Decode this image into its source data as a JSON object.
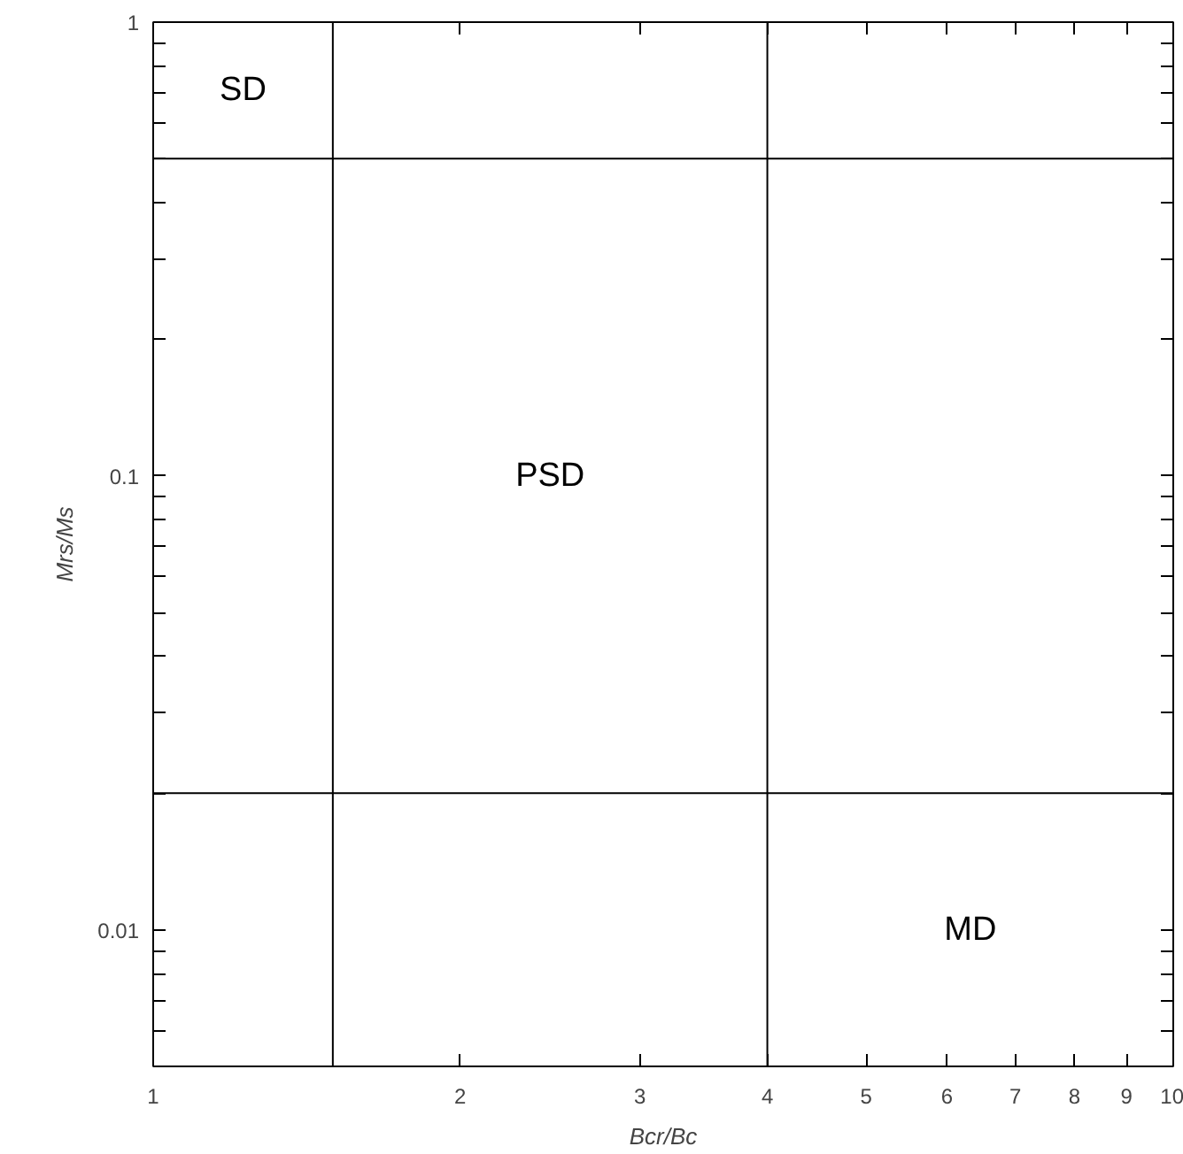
{
  "chart_data": {
    "type": "scatter",
    "xlabel": "Bcr/Bc",
    "ylabel": "Mrs/Ms",
    "log": "xy",
    "xlim": [
      1,
      10
    ],
    "ylim": [
      0.005,
      1
    ],
    "xticks": [
      1,
      2,
      3,
      4,
      5,
      6,
      7,
      8,
      9,
      10
    ],
    "yticks": [
      {
        "value": 0.005,
        "label": null
      },
      {
        "value": 0.006,
        "label": null
      },
      {
        "value": 0.007,
        "label": null
      },
      {
        "value": 0.008,
        "label": null
      },
      {
        "value": 0.009,
        "label": null
      },
      0.01,
      {
        "value": 0.02,
        "label": null
      },
      {
        "value": 0.03,
        "label": null
      },
      {
        "value": 0.04,
        "label": null
      },
      {
        "value": 0.05,
        "label": null
      },
      {
        "value": 0.06,
        "label": null
      },
      {
        "value": 0.07,
        "label": null
      },
      {
        "value": 0.08,
        "label": null
      },
      {
        "value": 0.09,
        "label": null
      },
      0.1,
      {
        "value": 0.2,
        "label": null
      },
      {
        "value": 0.3,
        "label": null
      },
      {
        "value": 0.4,
        "label": null
      },
      {
        "value": 0.5,
        "label": null
      },
      {
        "value": 0.6,
        "label": null
      },
      {
        "value": 0.7,
        "label": null
      },
      {
        "value": 0.8,
        "label": null
      },
      {
        "value": 0.9,
        "label": null
      },
      1
    ],
    "ref_lines": [
      {
        "axis": "x",
        "value": 1.5,
        "color": "#000000"
      },
      {
        "axis": "x",
        "value": 4,
        "color": "#000000"
      },
      {
        "axis": "y",
        "value": 0.5,
        "color": "#000000"
      },
      {
        "axis": "y",
        "value": 0.02,
        "color": "#000000"
      }
    ],
    "annotations": [
      "SD",
      "PSD",
      "MD"
    ],
    "grid": false
  }
}
